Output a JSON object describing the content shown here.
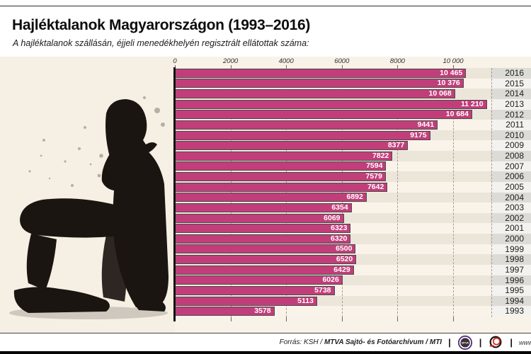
{
  "title": "Hajléktalanok Magyarországon (1993–2016)",
  "subtitle": "A hajléktalanok szállásán, éjjeli menedékhelyén regisztrált ellátottak száma:",
  "chart_data": {
    "type": "bar",
    "orientation": "horizontal",
    "categories": [
      "2016",
      "2015",
      "2014",
      "2013",
      "2012",
      "2011",
      "2010",
      "2009",
      "2008",
      "2007",
      "2006",
      "2005",
      "2004",
      "2003",
      "2002",
      "2001",
      "2000",
      "1999",
      "1998",
      "1997",
      "1996",
      "1995",
      "1994",
      "1993"
    ],
    "values": [
      10465,
      10376,
      10068,
      11210,
      10684,
      9441,
      9175,
      8377,
      7822,
      7594,
      7579,
      7642,
      6892,
      6354,
      6069,
      6323,
      6320,
      6500,
      6520,
      6429,
      6026,
      5738,
      5113,
      3578
    ],
    "value_labels": [
      "10 465",
      "10 376",
      "10 068",
      "11 210",
      "10 684",
      "9441",
      "9175",
      "8377",
      "7822",
      "7594",
      "7579",
      "7642",
      "6892",
      "6354",
      "6069",
      "6323",
      "6320",
      "6500",
      "6520",
      "6429",
      "6026",
      "5738",
      "5113",
      "3578"
    ],
    "x_ticks": [
      {
        "value": 0,
        "label": "0"
      },
      {
        "value": 2000,
        "label": "2000"
      },
      {
        "value": 4000,
        "label": "4000"
      },
      {
        "value": 6000,
        "label": "6000"
      },
      {
        "value": 8000,
        "label": "8000"
      },
      {
        "value": 10000,
        "label": "10 000"
      }
    ],
    "xlim": [
      0,
      11500
    ],
    "bar_color": "#c23e7b",
    "grid": "dashed-vertical",
    "legend": "none"
  },
  "footer": {
    "source_prefix": "Forrás: KSH / ",
    "source_bold": "MTVA Sajtó- és Fotóarchívum / MTI",
    "separator": "|",
    "mtva_logo_text": "MTVA",
    "url": "www.m"
  }
}
